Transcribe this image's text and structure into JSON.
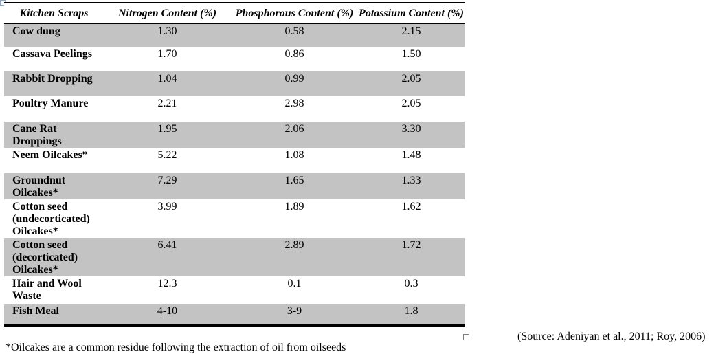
{
  "table": {
    "columns": [
      {
        "label": "Kitchen Scraps"
      },
      {
        "label": "Nitrogen Content (%)"
      },
      {
        "label": "Phosphorous Content (%)"
      },
      {
        "label": "Potassium Content (%)"
      }
    ],
    "rows": [
      {
        "label": "Cow dung",
        "nitrogen": "1.30",
        "phosphorous": "0.58",
        "potassium": "2.15",
        "shaded": true
      },
      {
        "label": "Cassava Peelings",
        "nitrogen": "1.70",
        "phosphorous": "0.86",
        "potassium": "1.50",
        "shaded": false
      },
      {
        "label": "Rabbit Dropping",
        "nitrogen": "1.04",
        "phosphorous": "0.99",
        "potassium": "2.05",
        "shaded": true
      },
      {
        "label": "Poultry Manure",
        "nitrogen": "2.21",
        "phosphorous": "2.98",
        "potassium": "2.05",
        "shaded": false
      },
      {
        "label": "Cane Rat\nDroppings",
        "nitrogen": "1.95",
        "phosphorous": "2.06",
        "potassium": "3.30",
        "shaded": true
      },
      {
        "label": "Neem Oilcakes*",
        "nitrogen": "5.22",
        "phosphorous": "1.08",
        "potassium": "1.48",
        "shaded": false
      },
      {
        "label": "Groundnut\nOilcakes*",
        "nitrogen": "7.29",
        "phosphorous": "1.65",
        "potassium": "1.33",
        "shaded": true
      },
      {
        "label": "Cotton seed\n(undecorticated)\nOilcakes*",
        "nitrogen": "3.99",
        "phosphorous": "1.89",
        "potassium": "1.62",
        "shaded": false
      },
      {
        "label": "Cotton seed\n(decorticated)\nOilcakes*",
        "nitrogen": "6.41",
        "phosphorous": "2.89",
        "potassium": "1.72",
        "shaded": true
      },
      {
        "label": "Hair and Wool\nWaste",
        "nitrogen": "12.3",
        "phosphorous": "0.1",
        "potassium": "0.3",
        "shaded": false
      },
      {
        "label": "Fish Meal",
        "nitrogen": "4-10",
        "phosphorous": "3-9",
        "potassium": "1.8",
        "shaded": true
      }
    ],
    "shading_color": "#c3c3c3",
    "border_color": "#000000"
  },
  "annotations": {
    "source_note": "(Source: Adeniyan et al., 2011; Roy, 2006)",
    "footnote": "*Oilcakes are a common residue following the extraction of oil from oilseeds"
  },
  "icons": {
    "move_handle": "table-move-handle-icon",
    "resize_handle": "table-resize-handle-icon",
    "move_handle_glyph": "+"
  }
}
